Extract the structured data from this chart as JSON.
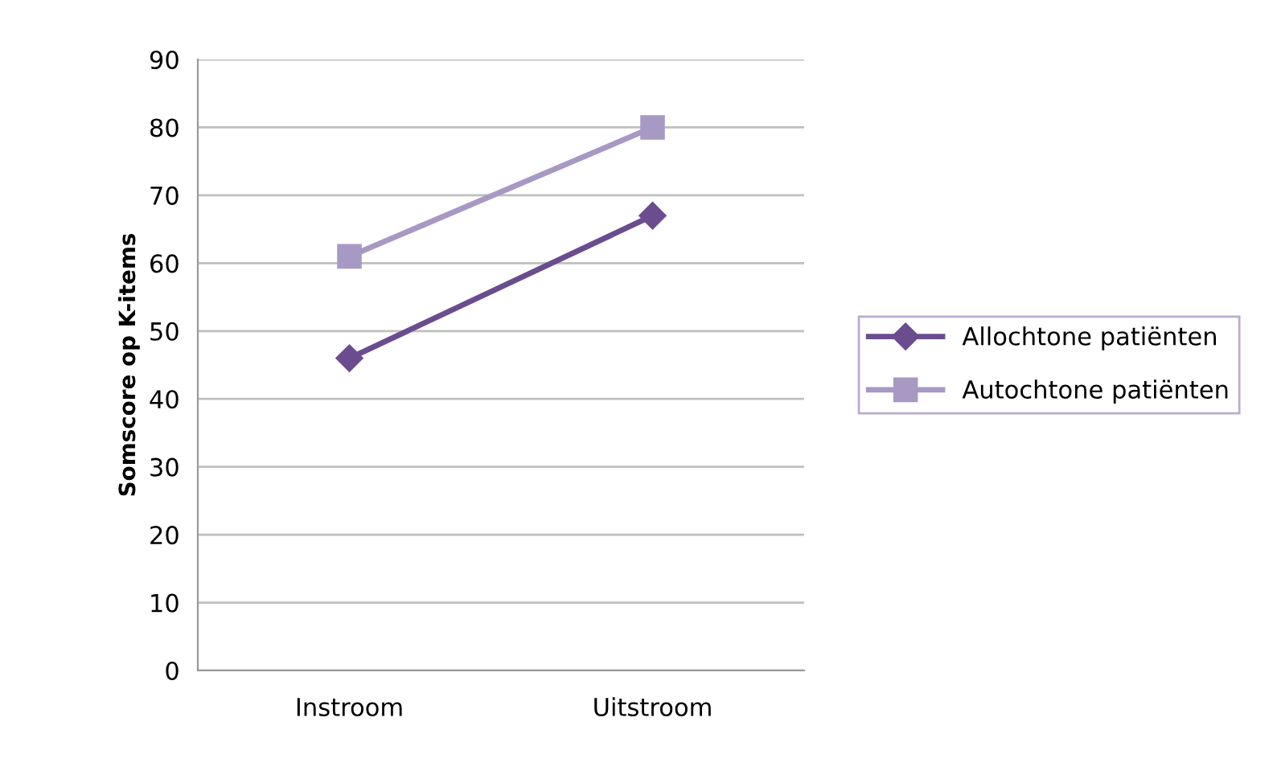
{
  "chart_data": {
    "type": "line",
    "ylabel": "Somscore op K-items",
    "categories": [
      "Instroom",
      "Uitstroom"
    ],
    "series": [
      {
        "name": "Allochtone patiënten",
        "color": "#6b4c8f",
        "marker": "diamond",
        "values": [
          46,
          67
        ]
      },
      {
        "name": "Autochtone patiënten",
        "color": "#a898c4",
        "marker": "square",
        "values": [
          61,
          80
        ]
      }
    ],
    "ylim": [
      0,
      90
    ],
    "yticks": [
      0,
      10,
      20,
      30,
      40,
      50,
      60,
      70,
      80,
      90
    ],
    "grid": "y",
    "legend": "right",
    "line_style": "solid"
  }
}
